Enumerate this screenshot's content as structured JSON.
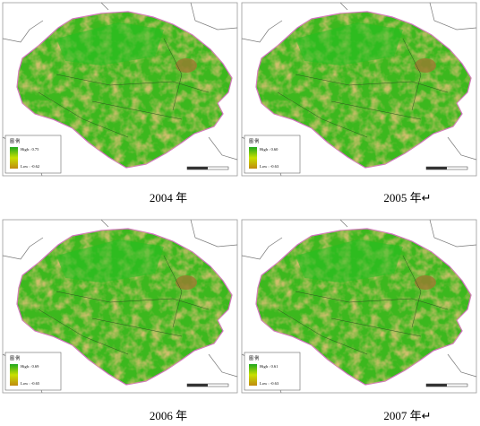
{
  "panels": [
    {
      "caption": "2004 年",
      "legend_title": "图 例",
      "high_label": "High : 0.75",
      "low_label": "Low : -0.62"
    },
    {
      "caption": "2005 年↵",
      "legend_title": "图 例",
      "high_label": "High : 0.60",
      "low_label": "Low : -0.63"
    },
    {
      "caption": "2006 年",
      "legend_title": "图 例",
      "high_label": "High : 0.69",
      "low_label": "Low : -0.65"
    },
    {
      "caption": "2007 年↵",
      "legend_title": "图 例",
      "high_label": "High : 0.61",
      "low_label": "Low : -0.63"
    }
  ]
}
